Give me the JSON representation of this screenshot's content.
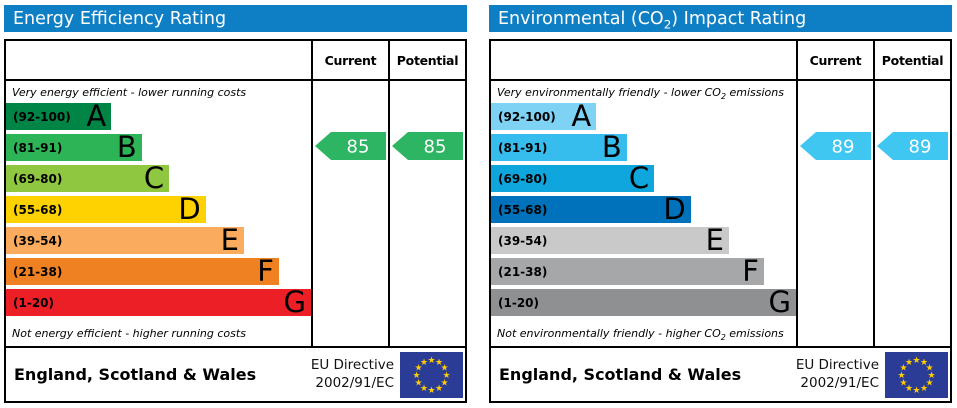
{
  "chart_data": [
    {
      "type": "bar",
      "title": "Energy Efficiency Rating",
      "categories": [
        "A (92-100)",
        "B (81-91)",
        "C (69-80)",
        "D (55-68)",
        "E (39-54)",
        "F (21-38)",
        "G (1-20)"
      ],
      "band_lengths_pct": [
        34.5,
        44.5,
        53.5,
        65.5,
        78,
        89.5,
        100
      ],
      "columns": [
        "Current",
        "Potential"
      ],
      "current": 85,
      "potential": 85,
      "current_band": "B",
      "potential_band": "B",
      "top_label": "Very energy efficient - lower running costs",
      "bottom_label": "Not energy efficient - higher running costs",
      "region": "England, Scotland & Wales",
      "directive": "EU Directive 2002/91/EC"
    },
    {
      "type": "bar",
      "title": "Environmental (CO2) Impact Rating",
      "categories": [
        "A (92-100)",
        "B (81-91)",
        "C (69-80)",
        "D (55-68)",
        "E (39-54)",
        "F (21-38)",
        "G (1-20)"
      ],
      "band_lengths_pct": [
        34.5,
        44.5,
        53.5,
        65.5,
        78,
        89.5,
        100
      ],
      "columns": [
        "Current",
        "Potential"
      ],
      "current": 89,
      "potential": 89,
      "current_band": "B",
      "potential_band": "B",
      "top_label": "Very environmentally friendly - lower CO2 emissions",
      "bottom_label": "Not environmentally friendly - higher CO2 emissions",
      "region": "England, Scotland & Wales",
      "directive": "EU Directive 2002/91/EC"
    }
  ],
  "charts": [
    {
      "title": {
        "pre": "Energy Efficiency Rating",
        "sub": "",
        "post": ""
      },
      "title_bg": "#0f7fc5",
      "header": {
        "current": "Current",
        "potential": "Potential"
      },
      "top_note": {
        "pre": "Very energy efficient - lower running costs",
        "sub": "",
        "post": ""
      },
      "bottom_note": {
        "pre": "Not energy efficient - higher running costs",
        "sub": "",
        "post": ""
      },
      "bands": [
        {
          "range": "(92-100)",
          "letter": "A",
          "color": "#008547",
          "width_pct": 34.5
        },
        {
          "range": "(81-91)",
          "letter": "B",
          "color": "#2db456",
          "width_pct": 44.5
        },
        {
          "range": "(69-80)",
          "letter": "C",
          "color": "#8fc740",
          "width_pct": 53.5
        },
        {
          "range": "(55-68)",
          "letter": "D",
          "color": "#fed100",
          "width_pct": 65.5
        },
        {
          "range": "(39-54)",
          "letter": "E",
          "color": "#fbab5d",
          "width_pct": 78
        },
        {
          "range": "(21-38)",
          "letter": "F",
          "color": "#ef8122",
          "width_pct": 89.5
        },
        {
          "range": "(1-20)",
          "letter": "G",
          "color": "#ec1f26",
          "width_pct": 100
        }
      ],
      "current": {
        "value": "85",
        "color": "#2eb563",
        "row": 1
      },
      "potential": {
        "value": "85",
        "color": "#2eb563",
        "row": 1
      },
      "footer": {
        "region": "England, Scotland & Wales",
        "eu_line1": "EU Directive",
        "eu_line2": "2002/91/EC",
        "flag_bg": "#2a3c96",
        "flag_star": "#ffcc00"
      }
    },
    {
      "title": {
        "pre": "Environmental (CO",
        "sub": "2",
        "post": ") Impact Rating"
      },
      "title_bg": "#0f7fc5",
      "header": {
        "current": "Current",
        "potential": "Potential"
      },
      "top_note": {
        "pre": "Very environmentally friendly - lower CO",
        "sub": "2",
        "post": " emissions"
      },
      "bottom_note": {
        "pre": "Not environmentally friendly - higher CO",
        "sub": "2",
        "post": " emissions"
      },
      "bands": [
        {
          "range": "(92-100)",
          "letter": "A",
          "color": "#7ed3f5",
          "width_pct": 34.5
        },
        {
          "range": "(81-91)",
          "letter": "B",
          "color": "#36bdee",
          "width_pct": 44.5
        },
        {
          "range": "(69-80)",
          "letter": "C",
          "color": "#0ea6dd",
          "width_pct": 53.5
        },
        {
          "range": "(55-68)",
          "letter": "D",
          "color": "#0072bb",
          "width_pct": 65.5
        },
        {
          "range": "(39-54)",
          "letter": "E",
          "color": "#c9c9c9",
          "width_pct": 78
        },
        {
          "range": "(21-38)",
          "letter": "F",
          "color": "#a6a7a9",
          "width_pct": 89.5
        },
        {
          "range": "(1-20)",
          "letter": "G",
          "color": "#8e9092",
          "width_pct": 100
        }
      ],
      "current": {
        "value": "89",
        "color": "#3fc7f2",
        "row": 1
      },
      "potential": {
        "value": "89",
        "color": "#3fc7f2",
        "row": 1
      },
      "footer": {
        "region": "England, Scotland & Wales",
        "eu_line1": "EU Directive",
        "eu_line2": "2002/91/EC",
        "flag_bg": "#2a3c96",
        "flag_star": "#ffcc00"
      }
    }
  ]
}
